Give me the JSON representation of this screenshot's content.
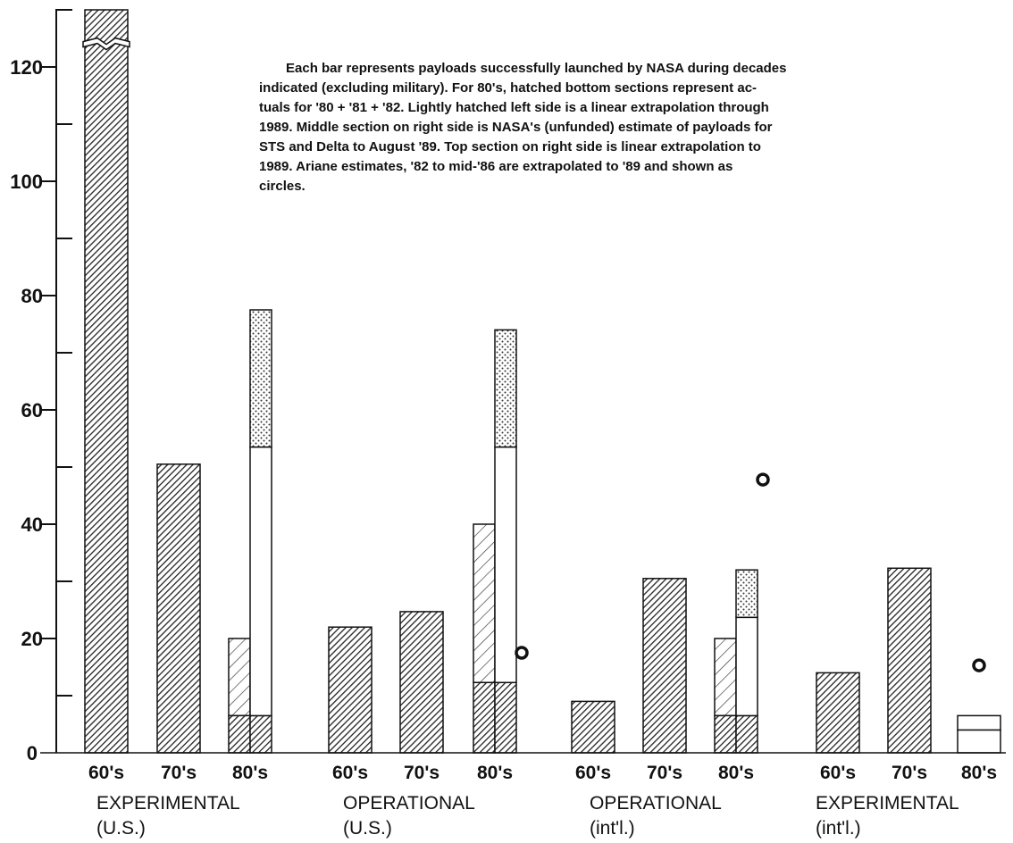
{
  "chart_data": {
    "type": "bar",
    "title": "",
    "xlabel": "",
    "ylabel": "",
    "ylim": [
      0,
      130
    ],
    "ytick_values": [
      0,
      20,
      40,
      60,
      80,
      100,
      120
    ],
    "ytick_labels": [
      "0",
      "20",
      "40",
      "60",
      "80",
      "100",
      "120"
    ],
    "grid": false,
    "annotation": {
      "lines": [
        "Each bar represents payloads successfully launched by NASA during decades",
        "indicated (excluding military). For 80's, hatched bottom sections represent ac-",
        "tuals for '80 + '81 + '82. Lightly hatched left side is a linear extrapolation through",
        "1989. Middle section on right side is NASA's (unfunded) estimate of payloads for",
        "STS and Delta to August '89. Top section on right side is linear extrapolation to",
        "1989. Ariane estimates, '82 to mid-'86 are extrapolated to '89 and shown as",
        "circles."
      ]
    },
    "groups": [
      {
        "label_line1": "EXPERIMENTAL",
        "label_line2": "(U.S.)",
        "bars": [
          {
            "category": "60's",
            "value": 130,
            "broken": true
          },
          {
            "category": "70's",
            "value": 50.5
          },
          {
            "category": "80's",
            "actual": 6.5,
            "left_extrapolation": 20,
            "nasa_estimate": 53.5,
            "top_extrapolation": 77.5
          }
        ]
      },
      {
        "label_line1": "OPERATIONAL",
        "label_line2": "(U.S.)",
        "bars": [
          {
            "category": "60's",
            "value": 22
          },
          {
            "category": "70's",
            "value": 24.7
          },
          {
            "category": "80's",
            "actual": 12.3,
            "left_extrapolation": 40,
            "nasa_estimate": 53.5,
            "top_extrapolation": 74,
            "ariane_estimate": 17.5
          }
        ]
      },
      {
        "label_line1": "OPERATIONAL",
        "label_line2": "(int'l.)",
        "bars": [
          {
            "category": "60's",
            "value": 9
          },
          {
            "category": "70's",
            "value": 30.5
          },
          {
            "category": "80's",
            "actual": 6.5,
            "left_extrapolation": 20,
            "nasa_estimate": 23.7,
            "top_extrapolation": 32,
            "ariane_estimate": 47.8
          }
        ]
      },
      {
        "label_line1": "EXPERIMENTAL",
        "label_line2": "(int'l.)",
        "bars": [
          {
            "category": "60's",
            "value": 14
          },
          {
            "category": "70's",
            "value": 32.3
          },
          {
            "category": "80's",
            "actual": 4,
            "nasa_estimate": 6.5,
            "ariane_estimate": 15.3
          }
        ]
      }
    ]
  }
}
